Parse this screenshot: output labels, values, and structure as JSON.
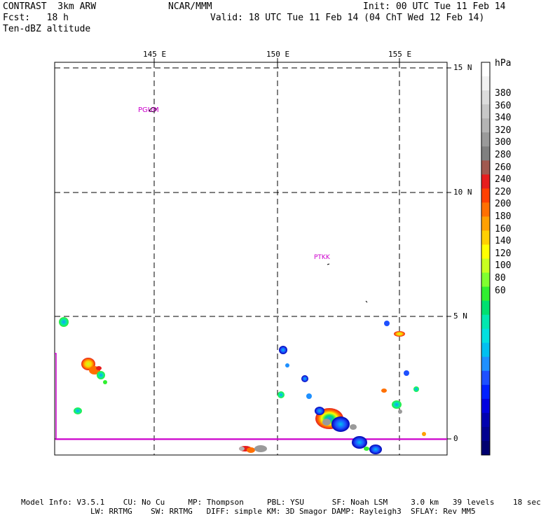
{
  "header": {
    "left_line1": "CONTRAST  3km ARW",
    "left_line2": "Fcst:   18 h",
    "left_line3": "Ten-dBZ altitude",
    "center": "NCAR/MMM",
    "init": "Init: 00 UTC Tue 11 Feb 14",
    "valid": "Valid: 18 UTC Tue 11 Feb 14 (04 ChT Wed 12 Feb 14)"
  },
  "map": {
    "lon_labels": [
      "145 E",
      "150 E",
      "155 E"
    ],
    "lat_labels": [
      "15 N",
      "10 N",
      "5 N",
      "0"
    ],
    "stations": [
      {
        "id": "PGUM"
      },
      {
        "id": "PTKK"
      }
    ],
    "colors": {
      "grid": "#000000",
      "station": "#cc00cc",
      "boundary": "#cc00cc"
    }
  },
  "colorbar": {
    "unit": "hPa",
    "labels": [
      "380",
      "360",
      "340",
      "320",
      "300",
      "280",
      "260",
      "240",
      "220",
      "200",
      "180",
      "160",
      "140",
      "120",
      "100",
      "80",
      "60"
    ],
    "colors": [
      "#ffffff",
      "#f2f2f2",
      "#dcdcdc",
      "#c8c8c8",
      "#b4b4b4",
      "#9a9a9a",
      "#808080",
      "#a05a50",
      "#e61e1e",
      "#ff4000",
      "#ff7000",
      "#ffa000",
      "#ffd000",
      "#ffff00",
      "#c8ff20",
      "#80ff30",
      "#30f030",
      "#00e070",
      "#00e8b0",
      "#00e0e0",
      "#00c0f0",
      "#1e90ff",
      "#1e50ff",
      "#0020ff",
      "#0000e0",
      "#0000b0",
      "#000090",
      "#000070"
    ]
  },
  "footer": {
    "line1": "Model Info: V3.5.1    CU: No Cu     MP: Thompson     PBL: YSU      SF: Noah LSM     3.0 km   39 levels    18 sec",
    "line2": "LW: RRTMG    SW: RRTMG   DIFF: simple KM: 3D Smagor DAMP: Rayleigh3  SFLAY: Rev MM5"
  }
}
